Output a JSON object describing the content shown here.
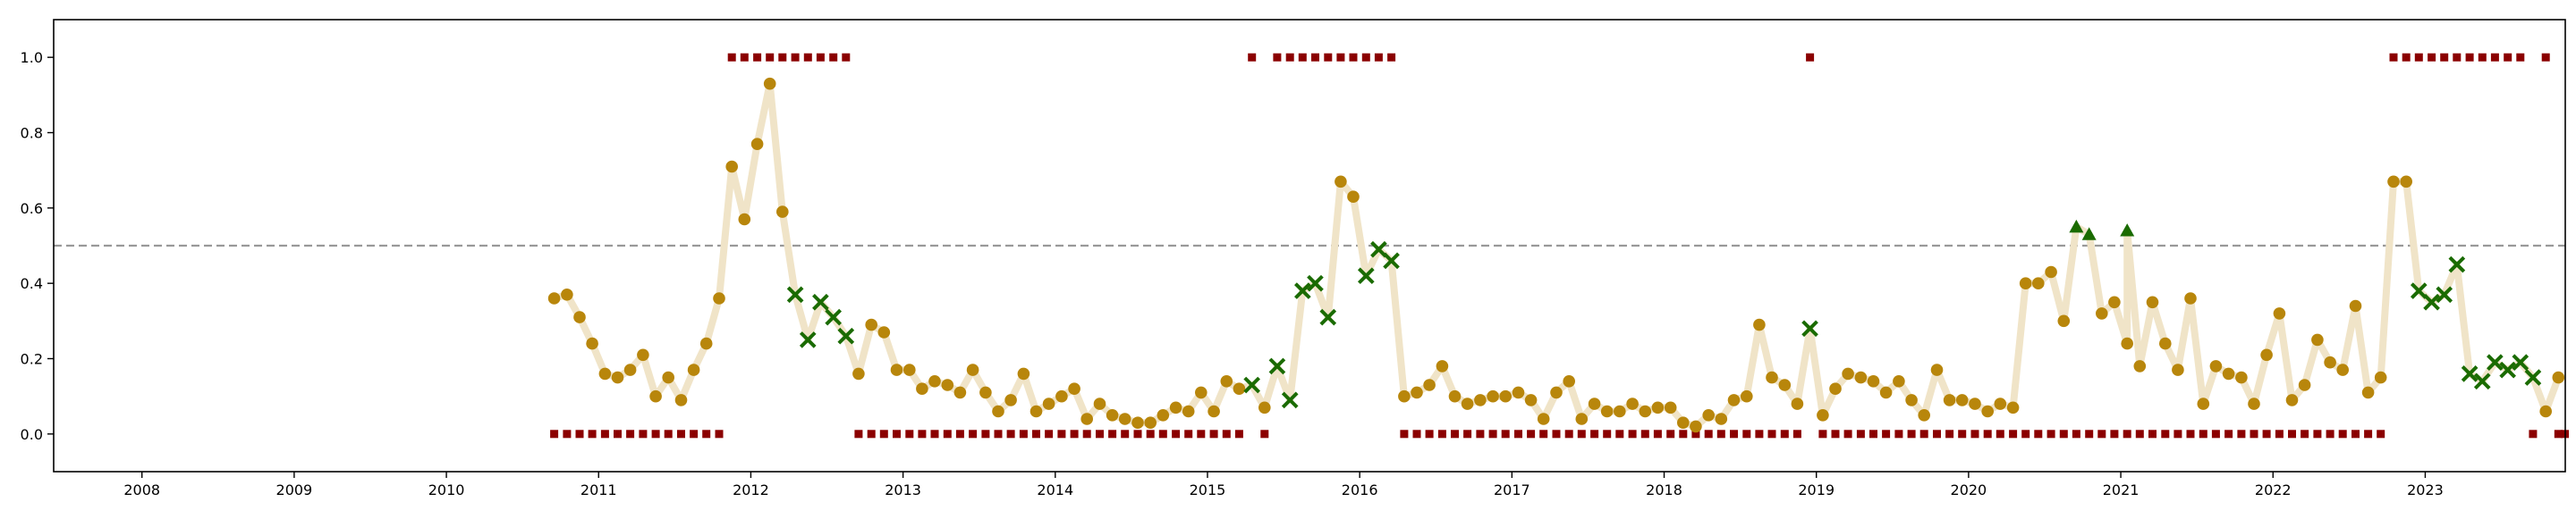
{
  "chart_data": {
    "type": "scatter",
    "title": "",
    "xlabel": "",
    "ylabel": "",
    "xlim": [
      2007.42,
      2023.92
    ],
    "ylim": [
      -0.1,
      1.1
    ],
    "grid": false,
    "legend": "none",
    "x_ticks": [
      "2008",
      "2009",
      "2010",
      "2011",
      "2012",
      "2013",
      "2014",
      "2015",
      "2016",
      "2017",
      "2018",
      "2019",
      "2020",
      "2021",
      "2022",
      "2023"
    ],
    "y_ticks": [
      "0.0",
      "0.2",
      "0.4",
      "0.6",
      "0.8",
      "1.0"
    ],
    "threshold": 0.5,
    "colors": {
      "probability_dot": "#B8860B",
      "probability_line": "#F0E4C8",
      "cross_marker": "#1A6B00",
      "triangle_marker": "#1A6B00",
      "binary_square": "#8B0000",
      "threshold_line": "#999999"
    },
    "series": [
      {
        "marker": "circle",
        "points": [
          [
            2010.708,
            0.36
          ],
          [
            2010.792,
            0.37
          ],
          [
            2010.875,
            0.31
          ],
          [
            2010.958,
            0.24
          ],
          [
            2011.042,
            0.16
          ],
          [
            2011.125,
            0.15
          ],
          [
            2011.208,
            0.17
          ],
          [
            2011.292,
            0.21
          ],
          [
            2011.375,
            0.1
          ],
          [
            2011.458,
            0.15
          ],
          [
            2011.542,
            0.09
          ],
          [
            2011.625,
            0.17
          ],
          [
            2011.708,
            0.24
          ],
          [
            2011.792,
            0.36
          ],
          [
            2011.875,
            0.71
          ],
          [
            2011.958,
            0.57
          ],
          [
            2012.042,
            0.77
          ],
          [
            2012.125,
            0.93
          ],
          [
            2012.208,
            0.59
          ],
          [
            2012.708,
            0.16
          ],
          [
            2012.792,
            0.29
          ],
          [
            2012.875,
            0.27
          ],
          [
            2012.958,
            0.17
          ],
          [
            2013.042,
            0.17
          ],
          [
            2013.125,
            0.12
          ],
          [
            2013.208,
            0.14
          ],
          [
            2013.292,
            0.13
          ],
          [
            2013.375,
            0.11
          ],
          [
            2013.458,
            0.17
          ],
          [
            2013.542,
            0.11
          ],
          [
            2013.625,
            0.06
          ],
          [
            2013.708,
            0.09
          ],
          [
            2013.792,
            0.16
          ],
          [
            2013.875,
            0.06
          ],
          [
            2013.958,
            0.08
          ],
          [
            2014.042,
            0.1
          ],
          [
            2014.125,
            0.12
          ],
          [
            2014.208,
            0.04
          ],
          [
            2014.292,
            0.08
          ],
          [
            2014.375,
            0.05
          ],
          [
            2014.458,
            0.04
          ],
          [
            2014.542,
            0.03
          ],
          [
            2014.625,
            0.03
          ],
          [
            2014.708,
            0.05
          ],
          [
            2014.792,
            0.07
          ],
          [
            2014.875,
            0.06
          ],
          [
            2014.958,
            0.11
          ],
          [
            2015.042,
            0.06
          ],
          [
            2015.125,
            0.14
          ],
          [
            2015.208,
            0.12
          ],
          [
            2015.375,
            0.07
          ],
          [
            2015.875,
            0.67
          ],
          [
            2015.958,
            0.63
          ],
          [
            2016.292,
            0.1
          ],
          [
            2016.375,
            0.11
          ],
          [
            2016.458,
            0.13
          ],
          [
            2016.542,
            0.18
          ],
          [
            2016.625,
            0.1
          ],
          [
            2016.708,
            0.08
          ],
          [
            2016.792,
            0.09
          ],
          [
            2016.875,
            0.1
          ],
          [
            2016.958,
            0.1
          ],
          [
            2017.042,
            0.11
          ],
          [
            2017.125,
            0.09
          ],
          [
            2017.208,
            0.04
          ],
          [
            2017.292,
            0.11
          ],
          [
            2017.375,
            0.14
          ],
          [
            2017.458,
            0.04
          ],
          [
            2017.542,
            0.08
          ],
          [
            2017.625,
            0.06
          ],
          [
            2017.708,
            0.06
          ],
          [
            2017.792,
            0.08
          ],
          [
            2017.875,
            0.06
          ],
          [
            2017.958,
            0.07
          ],
          [
            2018.042,
            0.07
          ],
          [
            2018.125,
            0.03
          ],
          [
            2018.208,
            0.02
          ],
          [
            2018.292,
            0.05
          ],
          [
            2018.375,
            0.04
          ],
          [
            2018.458,
            0.09
          ],
          [
            2018.542,
            0.1
          ],
          [
            2018.625,
            0.29
          ],
          [
            2018.708,
            0.15
          ],
          [
            2018.792,
            0.13
          ],
          [
            2018.875,
            0.08
          ],
          [
            2019.042,
            0.05
          ],
          [
            2019.125,
            0.12
          ],
          [
            2019.208,
            0.16
          ],
          [
            2019.292,
            0.15
          ],
          [
            2019.375,
            0.14
          ],
          [
            2019.458,
            0.11
          ],
          [
            2019.542,
            0.14
          ],
          [
            2019.625,
            0.09
          ],
          [
            2019.708,
            0.05
          ],
          [
            2019.792,
            0.17
          ],
          [
            2019.875,
            0.09
          ],
          [
            2019.958,
            0.09
          ],
          [
            2020.042,
            0.08
          ],
          [
            2020.125,
            0.06
          ],
          [
            2020.208,
            0.08
          ],
          [
            2020.292,
            0.07
          ],
          [
            2020.375,
            0.4
          ],
          [
            2020.458,
            0.4
          ],
          [
            2020.542,
            0.43
          ],
          [
            2020.625,
            0.3
          ],
          [
            2020.875,
            0.32
          ],
          [
            2020.958,
            0.35
          ],
          [
            2021.042,
            0.24
          ],
          [
            2021.125,
            0.18
          ],
          [
            2021.208,
            0.35
          ],
          [
            2021.292,
            0.24
          ],
          [
            2021.375,
            0.17
          ],
          [
            2021.458,
            0.36
          ],
          [
            2021.542,
            0.08
          ],
          [
            2021.625,
            0.18
          ],
          [
            2021.708,
            0.16
          ],
          [
            2021.792,
            0.15
          ],
          [
            2021.875,
            0.08
          ],
          [
            2021.958,
            0.21
          ],
          [
            2022.042,
            0.32
          ],
          [
            2022.125,
            0.09
          ],
          [
            2022.208,
            0.13
          ],
          [
            2022.292,
            0.25
          ],
          [
            2022.375,
            0.19
          ],
          [
            2022.458,
            0.17
          ],
          [
            2022.542,
            0.34
          ],
          [
            2022.625,
            0.11
          ],
          [
            2022.708,
            0.15
          ],
          [
            2022.792,
            0.67
          ],
          [
            2022.875,
            0.67
          ],
          [
            2023.792,
            0.06
          ],
          [
            2023.875,
            0.15
          ]
        ]
      },
      {
        "marker": "cross",
        "points": [
          [
            2012.292,
            0.37
          ],
          [
            2012.375,
            0.25
          ],
          [
            2012.458,
            0.35
          ],
          [
            2012.542,
            0.31
          ],
          [
            2012.625,
            0.26
          ],
          [
            2015.292,
            0.13
          ],
          [
            2015.458,
            0.18
          ],
          [
            2015.542,
            0.09
          ],
          [
            2015.625,
            0.38
          ],
          [
            2015.708,
            0.4
          ],
          [
            2015.792,
            0.31
          ],
          [
            2016.042,
            0.42
          ],
          [
            2016.125,
            0.49
          ],
          [
            2016.208,
            0.46
          ],
          [
            2018.958,
            0.28
          ],
          [
            2022.958,
            0.38
          ],
          [
            2023.042,
            0.35
          ],
          [
            2023.125,
            0.37
          ],
          [
            2023.208,
            0.45
          ],
          [
            2023.292,
            0.16
          ],
          [
            2023.375,
            0.14
          ],
          [
            2023.458,
            0.19
          ],
          [
            2023.542,
            0.17
          ],
          [
            2023.625,
            0.19
          ],
          [
            2023.708,
            0.15
          ]
        ]
      },
      {
        "marker": "triangle",
        "points": [
          [
            2020.708,
            0.55
          ],
          [
            2020.792,
            0.53
          ],
          [
            2021.042,
            0.54
          ]
        ]
      }
    ],
    "binary_series": {
      "marker": "square",
      "points": [
        [
          2010.708,
          0
        ],
        [
          2010.792,
          0
        ],
        [
          2010.875,
          0
        ],
        [
          2010.958,
          0
        ],
        [
          2011.042,
          0
        ],
        [
          2011.125,
          0
        ],
        [
          2011.208,
          0
        ],
        [
          2011.292,
          0
        ],
        [
          2011.375,
          0
        ],
        [
          2011.458,
          0
        ],
        [
          2011.542,
          0
        ],
        [
          2011.625,
          0
        ],
        [
          2011.708,
          0
        ],
        [
          2011.792,
          0
        ],
        [
          2011.875,
          1
        ],
        [
          2011.958,
          1
        ],
        [
          2012.042,
          1
        ],
        [
          2012.125,
          1
        ],
        [
          2012.208,
          1
        ],
        [
          2012.292,
          1
        ],
        [
          2012.375,
          1
        ],
        [
          2012.458,
          1
        ],
        [
          2012.542,
          1
        ],
        [
          2012.625,
          1
        ],
        [
          2012.708,
          0
        ],
        [
          2012.792,
          0
        ],
        [
          2012.875,
          0
        ],
        [
          2012.958,
          0
        ],
        [
          2013.042,
          0
        ],
        [
          2013.125,
          0
        ],
        [
          2013.208,
          0
        ],
        [
          2013.292,
          0
        ],
        [
          2013.375,
          0
        ],
        [
          2013.458,
          0
        ],
        [
          2013.542,
          0
        ],
        [
          2013.625,
          0
        ],
        [
          2013.708,
          0
        ],
        [
          2013.792,
          0
        ],
        [
          2013.875,
          0
        ],
        [
          2013.958,
          0
        ],
        [
          2014.042,
          0
        ],
        [
          2014.125,
          0
        ],
        [
          2014.208,
          0
        ],
        [
          2014.292,
          0
        ],
        [
          2014.375,
          0
        ],
        [
          2014.458,
          0
        ],
        [
          2014.542,
          0
        ],
        [
          2014.625,
          0
        ],
        [
          2014.708,
          0
        ],
        [
          2014.792,
          0
        ],
        [
          2014.875,
          0
        ],
        [
          2014.958,
          0
        ],
        [
          2015.042,
          0
        ],
        [
          2015.125,
          0
        ],
        [
          2015.208,
          0
        ],
        [
          2015.292,
          1
        ],
        [
          2015.375,
          0
        ],
        [
          2015.458,
          1
        ],
        [
          2015.542,
          1
        ],
        [
          2015.625,
          1
        ],
        [
          2015.708,
          1
        ],
        [
          2015.792,
          1
        ],
        [
          2015.875,
          1
        ],
        [
          2015.958,
          1
        ],
        [
          2016.042,
          1
        ],
        [
          2016.125,
          1
        ],
        [
          2016.208,
          1
        ],
        [
          2016.292,
          0
        ],
        [
          2016.375,
          0
        ],
        [
          2016.458,
          0
        ],
        [
          2016.542,
          0
        ],
        [
          2016.625,
          0
        ],
        [
          2016.708,
          0
        ],
        [
          2016.792,
          0
        ],
        [
          2016.875,
          0
        ],
        [
          2016.958,
          0
        ],
        [
          2017.042,
          0
        ],
        [
          2017.125,
          0
        ],
        [
          2017.208,
          0
        ],
        [
          2017.292,
          0
        ],
        [
          2017.375,
          0
        ],
        [
          2017.458,
          0
        ],
        [
          2017.542,
          0
        ],
        [
          2017.625,
          0
        ],
        [
          2017.708,
          0
        ],
        [
          2017.792,
          0
        ],
        [
          2017.875,
          0
        ],
        [
          2017.958,
          0
        ],
        [
          2018.042,
          0
        ],
        [
          2018.125,
          0
        ],
        [
          2018.208,
          0
        ],
        [
          2018.292,
          0
        ],
        [
          2018.375,
          0
        ],
        [
          2018.458,
          0
        ],
        [
          2018.542,
          0
        ],
        [
          2018.625,
          0
        ],
        [
          2018.708,
          0
        ],
        [
          2018.792,
          0
        ],
        [
          2018.875,
          0
        ],
        [
          2018.958,
          1
        ],
        [
          2019.042,
          0
        ],
        [
          2019.125,
          0
        ],
        [
          2019.208,
          0
        ],
        [
          2019.292,
          0
        ],
        [
          2019.375,
          0
        ],
        [
          2019.458,
          0
        ],
        [
          2019.542,
          0
        ],
        [
          2019.625,
          0
        ],
        [
          2019.708,
          0
        ],
        [
          2019.792,
          0
        ],
        [
          2019.875,
          0
        ],
        [
          2019.958,
          0
        ],
        [
          2020.042,
          0
        ],
        [
          2020.125,
          0
        ],
        [
          2020.208,
          0
        ],
        [
          2020.292,
          0
        ],
        [
          2020.375,
          0
        ],
        [
          2020.458,
          0
        ],
        [
          2020.542,
          0
        ],
        [
          2020.625,
          0
        ],
        [
          2020.708,
          0
        ],
        [
          2020.792,
          0
        ],
        [
          2020.875,
          0
        ],
        [
          2020.958,
          0
        ],
        [
          2021.042,
          0
        ],
        [
          2021.125,
          0
        ],
        [
          2021.208,
          0
        ],
        [
          2021.292,
          0
        ],
        [
          2021.375,
          0
        ],
        [
          2021.458,
          0
        ],
        [
          2021.542,
          0
        ],
        [
          2021.625,
          0
        ],
        [
          2021.708,
          0
        ],
        [
          2021.792,
          0
        ],
        [
          2021.875,
          0
        ],
        [
          2021.958,
          0
        ],
        [
          2022.042,
          0
        ],
        [
          2022.125,
          0
        ],
        [
          2022.208,
          0
        ],
        [
          2022.292,
          0
        ],
        [
          2022.375,
          0
        ],
        [
          2022.458,
          0
        ],
        [
          2022.542,
          0
        ],
        [
          2022.625,
          0
        ],
        [
          2022.708,
          0
        ],
        [
          2022.792,
          1
        ],
        [
          2022.875,
          1
        ],
        [
          2022.958,
          1
        ],
        [
          2023.042,
          1
        ],
        [
          2023.125,
          1
        ],
        [
          2023.208,
          1
        ],
        [
          2023.292,
          1
        ],
        [
          2023.375,
          1
        ],
        [
          2023.458,
          1
        ],
        [
          2023.542,
          1
        ],
        [
          2023.625,
          1
        ],
        [
          2023.708,
          0
        ],
        [
          2023.792,
          1
        ],
        [
          2023.875,
          0
        ],
        [
          2023.917,
          0
        ]
      ]
    }
  }
}
